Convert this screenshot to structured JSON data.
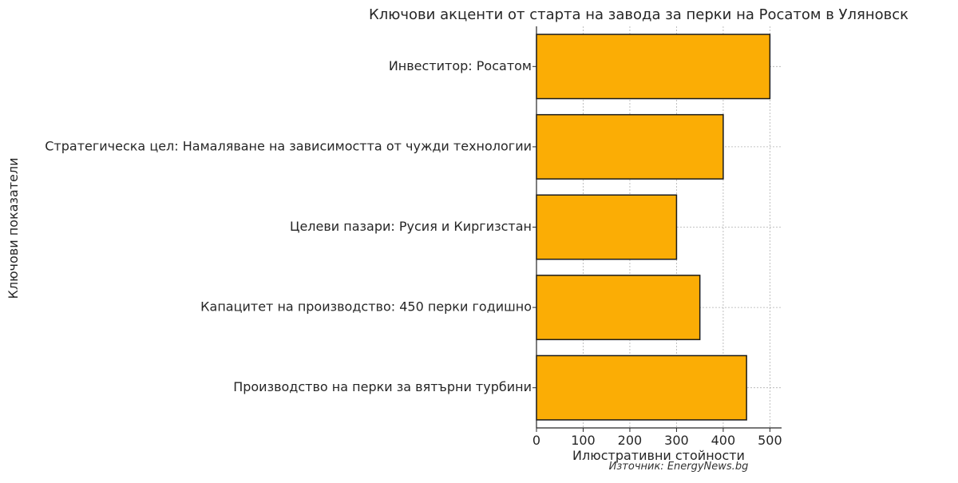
{
  "chart_data": {
    "type": "bar",
    "orientation": "horizontal",
    "title": "Ключови акценти от старта на завода за перки на Росатом в Уляновск",
    "xlabel": "Илюстративни стойности",
    "ylabel": "Ключови показатели",
    "categories": [
      "Производство на перки за вятърни турбини",
      "Капацитет на производство: 450 перки годишно",
      "Целеви пазари: Русия и Киргизстан",
      "Стратегическа цел: Намаляване на зависимостта от чужди технологии",
      "Инвеститор: Росатом"
    ],
    "values": [
      450,
      350,
      300,
      400,
      500
    ],
    "xlim": [
      0,
      525
    ],
    "xticks": [
      0,
      100,
      200,
      300,
      400,
      500
    ],
    "grid": true,
    "bar_color": "#fbad05",
    "bar_edge_color": "#1a1a1a",
    "source": "Източник: EnergyNews.bg"
  }
}
